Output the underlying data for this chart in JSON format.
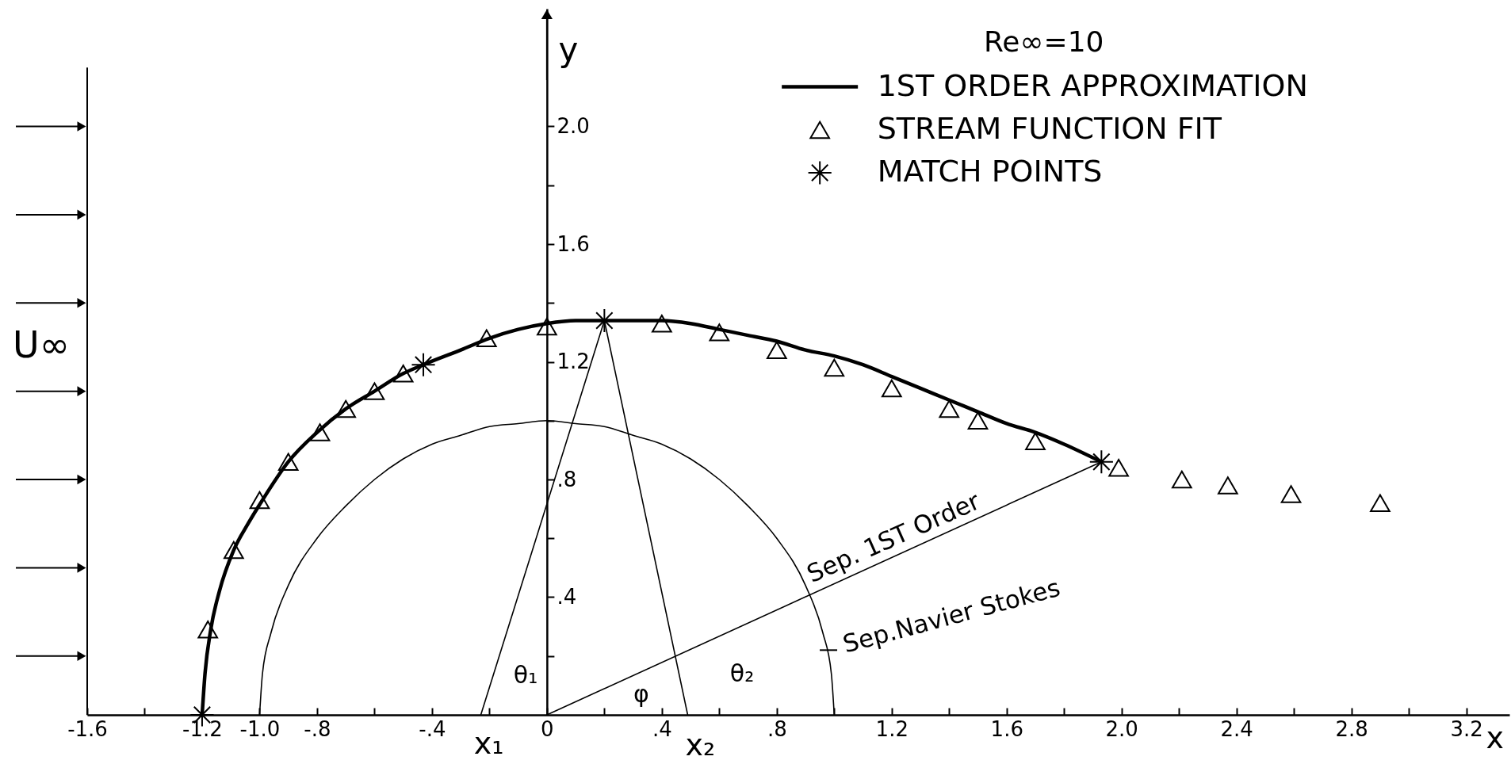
{
  "chart_data": {
    "type": "line",
    "xlabel": "x",
    "ylabel": "y",
    "legend_title": "Re∞=10",
    "legend": "top right",
    "xlim": [
      -1.6,
      3.35
    ],
    "ylim": [
      0,
      2.4
    ],
    "xticks": [
      -1.6,
      {
        "value": -1.4,
        "label": null
      },
      -1.2,
      {
        "value": -1,
        "label": "-1.0"
      },
      {
        "value": -0.8,
        "label": "-.8"
      },
      {
        "value": -0.6,
        "label": null
      },
      {
        "value": -0.4,
        "label": "-.4"
      },
      {
        "value": -0.2,
        "label": null
      },
      0,
      {
        "value": 0.2,
        "label": null
      },
      {
        "value": 0.4,
        "label": ".4"
      },
      {
        "value": 0.6,
        "label": null
      },
      {
        "value": 0.8,
        "label": ".8"
      },
      {
        "value": 1,
        "label": null
      },
      1.2,
      {
        "value": 1.4,
        "label": null
      },
      1.6,
      {
        "value": 1.8,
        "label": null
      },
      {
        "value": 2,
        "label": "2.0"
      },
      {
        "value": 2.2,
        "label": null
      },
      2.4,
      {
        "value": 2.6,
        "label": null
      },
      2.8,
      {
        "value": 3,
        "label": null
      },
      3.2
    ],
    "yticks": [
      {
        "value": 0.2,
        "label": null
      },
      {
        "value": 0.4,
        "label": ".4"
      },
      {
        "value": 0.6,
        "label": null
      },
      {
        "value": 0.8,
        "label": ".8"
      },
      {
        "value": 1,
        "label": null
      },
      1.2,
      {
        "value": 1.4,
        "label": null
      },
      1.6,
      {
        "value": 1.8,
        "label": null
      },
      {
        "value": 2,
        "label": "2.0"
      }
    ],
    "series": [
      {
        "name": "1ST ORDER APPROXIMATION",
        "color": "#000000",
        "x": [
          -1.2,
          -1.19,
          -1.17,
          -1.14,
          -1.09,
          -1.04,
          -0.99,
          -0.9,
          -0.8,
          -0.7,
          -0.6,
          -0.5,
          -0.43,
          -0.3,
          -0.2,
          -0.1,
          0,
          0.1,
          0.2,
          0.3,
          0.4,
          0.5,
          0.6,
          0.7,
          0.8,
          0.9,
          1.0,
          1.1,
          1.2,
          1.3,
          1.4,
          1.5,
          1.6,
          1.7,
          1.8,
          1.93
        ],
        "values": [
          0,
          0.14,
          0.29,
          0.42,
          0.56,
          0.65,
          0.73,
          0.86,
          0.96,
          1.04,
          1.1,
          1.16,
          1.19,
          1.24,
          1.28,
          1.31,
          1.33,
          1.34,
          1.34,
          1.34,
          1.34,
          1.33,
          1.31,
          1.29,
          1.27,
          1.24,
          1.22,
          1.19,
          1.15,
          1.11,
          1.07,
          1.03,
          0.99,
          0.96,
          0.92,
          0.86
        ]
      },
      {
        "name": "STREAM FUNCTION FIT",
        "type": "scatter",
        "marker": "triangle",
        "color": "#000000",
        "x": [
          -1.18,
          -1.09,
          -1.0,
          -0.9,
          -0.79,
          -0.7,
          -0.6,
          -0.5,
          -0.21,
          0,
          0.4,
          0.6,
          0.8,
          1.0,
          1.2,
          1.4,
          1.5,
          1.7,
          1.99,
          2.21,
          2.37,
          2.59,
          2.9
        ],
        "values": [
          0.29,
          0.56,
          0.73,
          0.86,
          0.96,
          1.04,
          1.1,
          1.16,
          1.28,
          1.32,
          1.33,
          1.3,
          1.24,
          1.18,
          1.11,
          1.04,
          1.0,
          0.93,
          0.84,
          0.8,
          0.78,
          0.75,
          0.72
        ]
      },
      {
        "name": "MATCH POINTS",
        "type": "scatter",
        "marker": "cross",
        "color": "#000000",
        "x": [
          -1.2,
          -0.43,
          0.2,
          1.93
        ],
        "values": [
          0,
          1.19,
          1.34,
          0.86
        ]
      },
      {
        "color": "#000000",
        "x": [
          -1,
          -0.99,
          -0.96,
          -0.9,
          -0.8,
          -0.7,
          -0.6,
          -0.5,
          -0.4,
          -0.3,
          -0.2,
          -0.1,
          0,
          0.1,
          0.2,
          0.3,
          0.4,
          0.5,
          0.6,
          0.7,
          0.8,
          0.9,
          0.96,
          0.99,
          1
        ],
        "values": [
          0,
          0.14,
          0.28,
          0.44,
          0.6,
          0.71,
          0.8,
          0.87,
          0.92,
          0.95,
          0.98,
          0.99,
          1,
          0.99,
          0.98,
          0.95,
          0.92,
          0.87,
          0.8,
          0.71,
          0.6,
          0.44,
          0.28,
          0.14,
          0
        ]
      },
      {
        "color": "#000000",
        "x": [
          -0.23,
          0.2
        ],
        "values": [
          0,
          1.34
        ]
      },
      {
        "color": "#000000",
        "x": [
          0.2,
          0.49
        ],
        "values": [
          1.34,
          0
        ]
      },
      {
        "color": "#000000",
        "x": [
          0,
          1.93
        ],
        "values": [
          0,
          0.86
        ]
      }
    ],
    "annotations": [
      "U∞",
      {
        "text": "Sep. 1ST Order",
        "x": 1.23,
        "y": 0.55
      },
      {
        "text": "Sep.Navier Stokes",
        "x": 0.98,
        "y": 0.22
      },
      "θ₁",
      "θ₂",
      "φ",
      {
        "text": "x₁",
        "x": -0.23,
        "y": 0
      },
      {
        "text": "x₂",
        "x": 0.49,
        "y": 0
      }
    ]
  }
}
